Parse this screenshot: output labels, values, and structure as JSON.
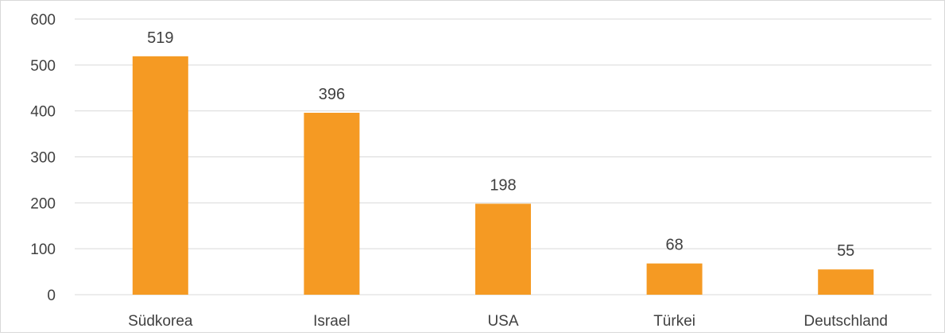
{
  "chart_data": {
    "type": "bar",
    "title": "",
    "xlabel": "",
    "ylabel": "",
    "categories": [
      "Südkorea",
      "Israel",
      "USA",
      "Türkei",
      "Deutschland"
    ],
    "values": [
      519,
      396,
      198,
      68,
      55
    ],
    "value_labels": [
      "519",
      "396",
      "198",
      "68",
      "55"
    ],
    "ylim": [
      0,
      600
    ],
    "yticks": [
      0,
      100,
      200,
      300,
      400,
      500,
      600
    ],
    "ytick_labels": [
      "0",
      "100",
      "200",
      "300",
      "400",
      "500",
      "600"
    ],
    "grid": true,
    "legend": "none",
    "colors": {
      "bar": "#f59a23",
      "grid": "#d9d9d9",
      "text": "#404040"
    }
  }
}
